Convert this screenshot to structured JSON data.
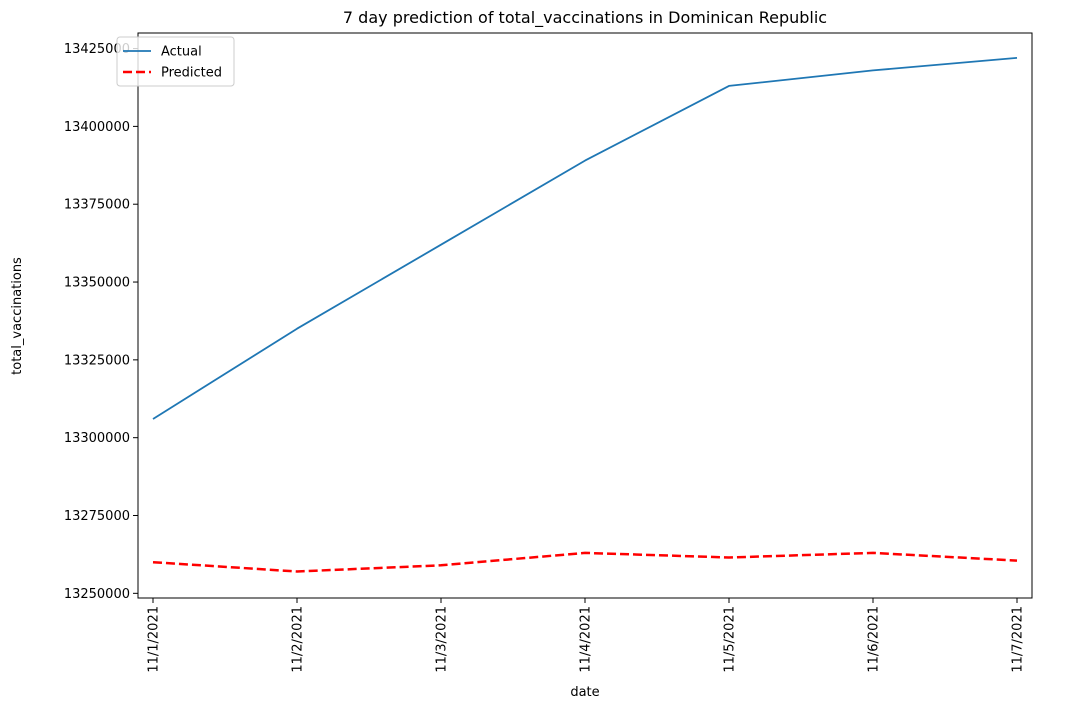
{
  "chart_data": {
    "type": "line",
    "title": "7 day prediction of total_vaccinations in Dominican Republic",
    "xlabel": "date",
    "ylabel": "total_vaccinations",
    "categories": [
      "11/1/2021",
      "11/2/2021",
      "11/3/2021",
      "11/4/2021",
      "11/5/2021",
      "11/6/2021",
      "11/7/2021"
    ],
    "ylim": [
      13248500,
      13430000
    ],
    "yticks": [
      13250000,
      13275000,
      13300000,
      13325000,
      13350000,
      13375000,
      13400000,
      13425000
    ],
    "ytick_labels": [
      "13250000",
      "13275000",
      "13300000",
      "13325000",
      "13350000",
      "13375000",
      "13400000",
      "13425000"
    ],
    "grid": false,
    "legend_position": "top-left",
    "series": [
      {
        "name": "Actual",
        "color": "#1f77b4",
        "style": "solid",
        "values": [
          13306000,
          13335000,
          13362000,
          13389000,
          13413000,
          13418000,
          13422000
        ]
      },
      {
        "name": "Predicted",
        "color": "#ff0000",
        "style": "dashed",
        "values": [
          13260000,
          13257000,
          13259000,
          13263000,
          13261500,
          13263000,
          13260500
        ]
      }
    ]
  }
}
